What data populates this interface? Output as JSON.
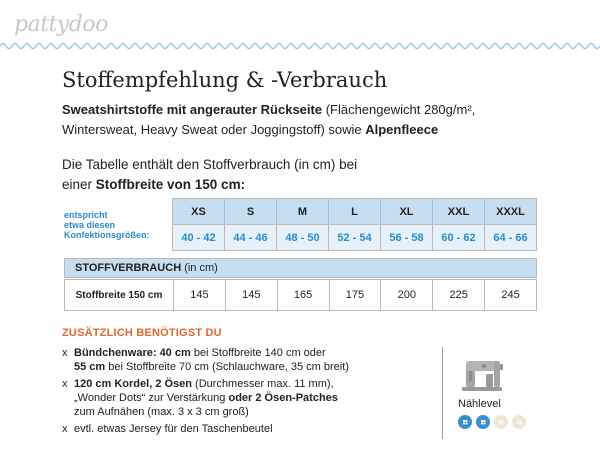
{
  "brand": "pattydoo",
  "title": "Stoffempfehlung & -Verbrauch",
  "intro": {
    "bold1": "Sweatshirtstoffe mit angerauter Rückseite",
    "text1": " (Flächengewicht 280g/m²,",
    "text2": "Wintersweat, Heavy Sweat oder Joggingstoff) sowie ",
    "bold2": "Alpenfleece"
  },
  "table_intro": {
    "line1": "Die Tabelle enthält den Stoffverbrauch (in cm) bei",
    "line2_text": "einer ",
    "line2_bold": "Stoffbreite von 150 cm:"
  },
  "size_table": {
    "label_lines": [
      "entspricht",
      "etwa diesen",
      "Konfektionsgrößen:"
    ],
    "sizes": [
      "XS",
      "S",
      "M",
      "L",
      "XL",
      "XXL",
      "XXXL"
    ],
    "ranges": [
      "40 - 42",
      "44 - 46",
      "48 - 50",
      "52 - 54",
      "56 - 58",
      "60 - 62",
      "64 - 66"
    ]
  },
  "consumption": {
    "header_bold": "STOFFVERBRAUCH",
    "header_text": "(in cm)",
    "row_label": "Stoffbreite 150 cm",
    "values": [
      "145",
      "145",
      "165",
      "175",
      "200",
      "225",
      "245"
    ]
  },
  "extras": {
    "heading": "ZUSÄTZLICH BENÖTIGST DU",
    "items": [
      {
        "b1": "Bündchenware: 40 cm",
        "t1": " bei Stoffbreite 140 cm oder",
        "b2": "55 cm",
        "t2": " bei Stoffbreite 70 cm (Schlauchware, 35 cm breit)"
      },
      {
        "b1": "120 cm Kordel, 2 Ösen",
        "t1": " (Durchmesser max. 11 mm),",
        "t2a": "„Wonder Dots“ zur Verstärkung ",
        "b2": "oder 2 Ösen-Patches",
        "t3": "zum Aufnähen (max. 3 x 3 cm groß)"
      },
      {
        "t1": "evtl. etwas Jersey für den Taschenbeutel"
      }
    ],
    "bullet": "x"
  },
  "level": {
    "label": "Nählevel",
    "icon": "sewing-machine-icon",
    "value": 2,
    "max": 4,
    "color_on": "#3a8fd0",
    "color_off": "#efe7d6"
  },
  "colors": {
    "accent_blue": "#2b8ccb",
    "header_blue": "#c6def0",
    "orange": "#e0662e"
  }
}
